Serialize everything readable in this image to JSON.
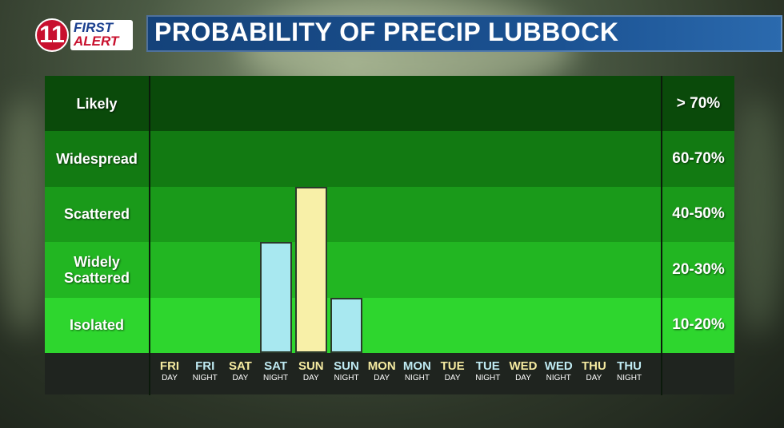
{
  "logo": {
    "number": "11",
    "line1": "FIRST",
    "line2": "ALERT"
  },
  "title": "PROBABILITY OF PRECIP LUBBOCK",
  "colors": {
    "bands": [
      "#0a4a0a",
      "#127a12",
      "#1a9a1a",
      "#22b622",
      "#2ed62e"
    ],
    "day_bar": "#f8f0a8",
    "night_bar": "#a8e8f0",
    "day_label": "#f5eaa0",
    "night_label": "#bfeaf2",
    "title_bar": "#1b5292"
  },
  "chart_data": {
    "type": "bar",
    "title": "PROBABILITY OF PRECIP LUBBOCK",
    "bands": [
      {
        "label": "Likely",
        "range": "> 70%"
      },
      {
        "label": "Widespread",
        "range": "60-70%"
      },
      {
        "label": "Scattered",
        "range": "40-50%"
      },
      {
        "label": "Widely Scattered",
        "range": "20-30%"
      },
      {
        "label": "Isolated",
        "range": "10-20%"
      }
    ],
    "categories": [
      {
        "day": "FRI",
        "period": "DAY"
      },
      {
        "day": "FRI",
        "period": "NIGHT"
      },
      {
        "day": "SAT",
        "period": "DAY"
      },
      {
        "day": "SAT",
        "period": "NIGHT"
      },
      {
        "day": "SUN",
        "period": "DAY"
      },
      {
        "day": "SUN",
        "period": "NIGHT"
      },
      {
        "day": "MON",
        "period": "DAY"
      },
      {
        "day": "MON",
        "period": "NIGHT"
      },
      {
        "day": "TUE",
        "period": "DAY"
      },
      {
        "day": "TUE",
        "period": "NIGHT"
      },
      {
        "day": "WED",
        "period": "DAY"
      },
      {
        "day": "WED",
        "period": "NIGHT"
      },
      {
        "day": "THU",
        "period": "DAY"
      },
      {
        "day": "THU",
        "period": "NIGHT"
      }
    ],
    "values": [
      0,
      0,
      0,
      30,
      50,
      20,
      0,
      0,
      0,
      0,
      0,
      0,
      0,
      0
    ],
    "y_unit": "percent",
    "ylim": [
      0,
      80
    ],
    "grid": false,
    "legend": "none"
  }
}
